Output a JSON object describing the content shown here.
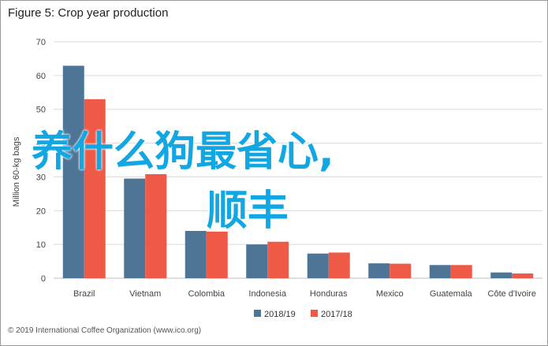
{
  "title": "Figure 5: Crop year production",
  "footer": "© 2019 International Coffee Organization (www.ico.org)",
  "overlay": {
    "line1": "养什么狗最省心,",
    "line2": "顺丰"
  },
  "colors": {
    "series1": "#4e7596",
    "series2": "#ef5a47",
    "grid": "#d9d9d9"
  },
  "chart_data": {
    "type": "bar",
    "title": "Figure 5: Crop year production",
    "ylabel": "Million 60-kg bags",
    "xlabel": "",
    "ylim": [
      0,
      70
    ],
    "yticks": [
      0,
      10,
      20,
      30,
      40,
      50,
      60,
      70
    ],
    "grid": true,
    "legend": "bottom",
    "categories": [
      "Brazil",
      "Vietnam",
      "Colombia",
      "Indonesia",
      "Honduras",
      "Mexico",
      "Guatemala",
      "Côte d'Ivoire"
    ],
    "series": [
      {
        "name": "2018/19",
        "values": [
          62.9,
          29.5,
          14.0,
          10.0,
          7.3,
          4.4,
          3.9,
          1.7
        ]
      },
      {
        "name": "2017/18",
        "values": [
          53.0,
          30.8,
          13.8,
          10.8,
          7.6,
          4.3,
          3.9,
          1.4
        ]
      }
    ]
  }
}
